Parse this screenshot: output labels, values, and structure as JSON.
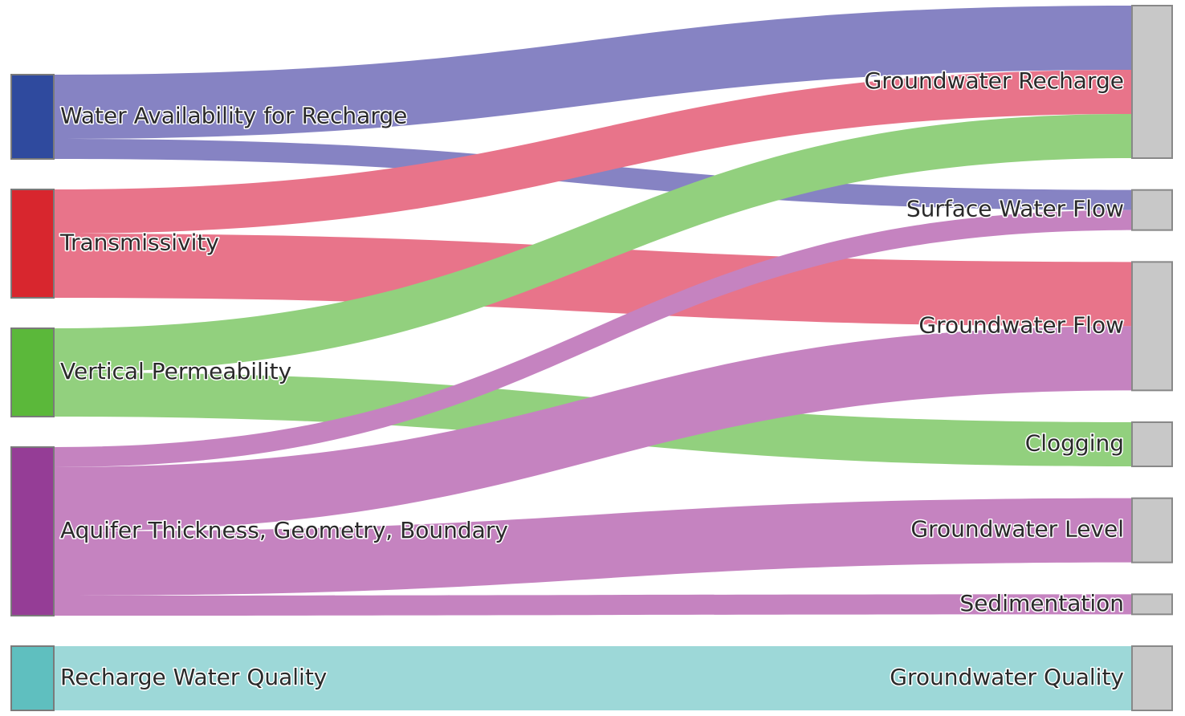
{
  "chart_data": {
    "type": "sankey",
    "nodes": [
      {
        "name": "Water Availability for Recharge",
        "color": "#2f4a9e"
      },
      {
        "name": "Transmissivity",
        "color": "#d8262e"
      },
      {
        "name": "Vertical Permeability",
        "color": "#5bb83a"
      },
      {
        "name": "Aquifer Thickness, Geometry, Boundary",
        "color": "#953d96"
      },
      {
        "name": "Recharge Water Quality",
        "color": "#5fbfbf"
      },
      {
        "name": "Groundwater Recharge",
        "color": "#c8c8c8"
      },
      {
        "name": "Surface Water Flow",
        "color": "#c8c8c8"
      },
      {
        "name": "Groundwater Flow",
        "color": "#c8c8c8"
      },
      {
        "name": "Clogging",
        "color": "#c8c8c8"
      },
      {
        "name": "Groundwater Level",
        "color": "#c8c8c8"
      },
      {
        "name": "Sedimentation",
        "color": "#c8c8c8"
      },
      {
        "name": "Groundwater Quality",
        "color": "#c8c8c8"
      }
    ],
    "links": [
      {
        "source": 0,
        "target": 5,
        "value": 80,
        "color": "#8683c3"
      },
      {
        "source": 0,
        "target": 6,
        "value": 25,
        "color": "#8683c3"
      },
      {
        "source": 1,
        "target": 5,
        "value": 55,
        "color": "#e8748a"
      },
      {
        "source": 1,
        "target": 7,
        "value": 80,
        "color": "#e8748a"
      },
      {
        "source": 2,
        "target": 5,
        "value": 55,
        "color": "#92d07e"
      },
      {
        "source": 2,
        "target": 8,
        "value": 55,
        "color": "#92d07e"
      },
      {
        "source": 3,
        "target": 6,
        "value": 25,
        "color": "#c583c0"
      },
      {
        "source": 3,
        "target": 7,
        "value": 80,
        "color": "#c583c0"
      },
      {
        "source": 3,
        "target": 9,
        "value": 80,
        "color": "#c583c0"
      },
      {
        "source": 3,
        "target": 10,
        "value": 25,
        "color": "#c583c0"
      },
      {
        "source": 4,
        "target": 11,
        "value": 80,
        "color": "#9dd8d8"
      }
    ]
  }
}
